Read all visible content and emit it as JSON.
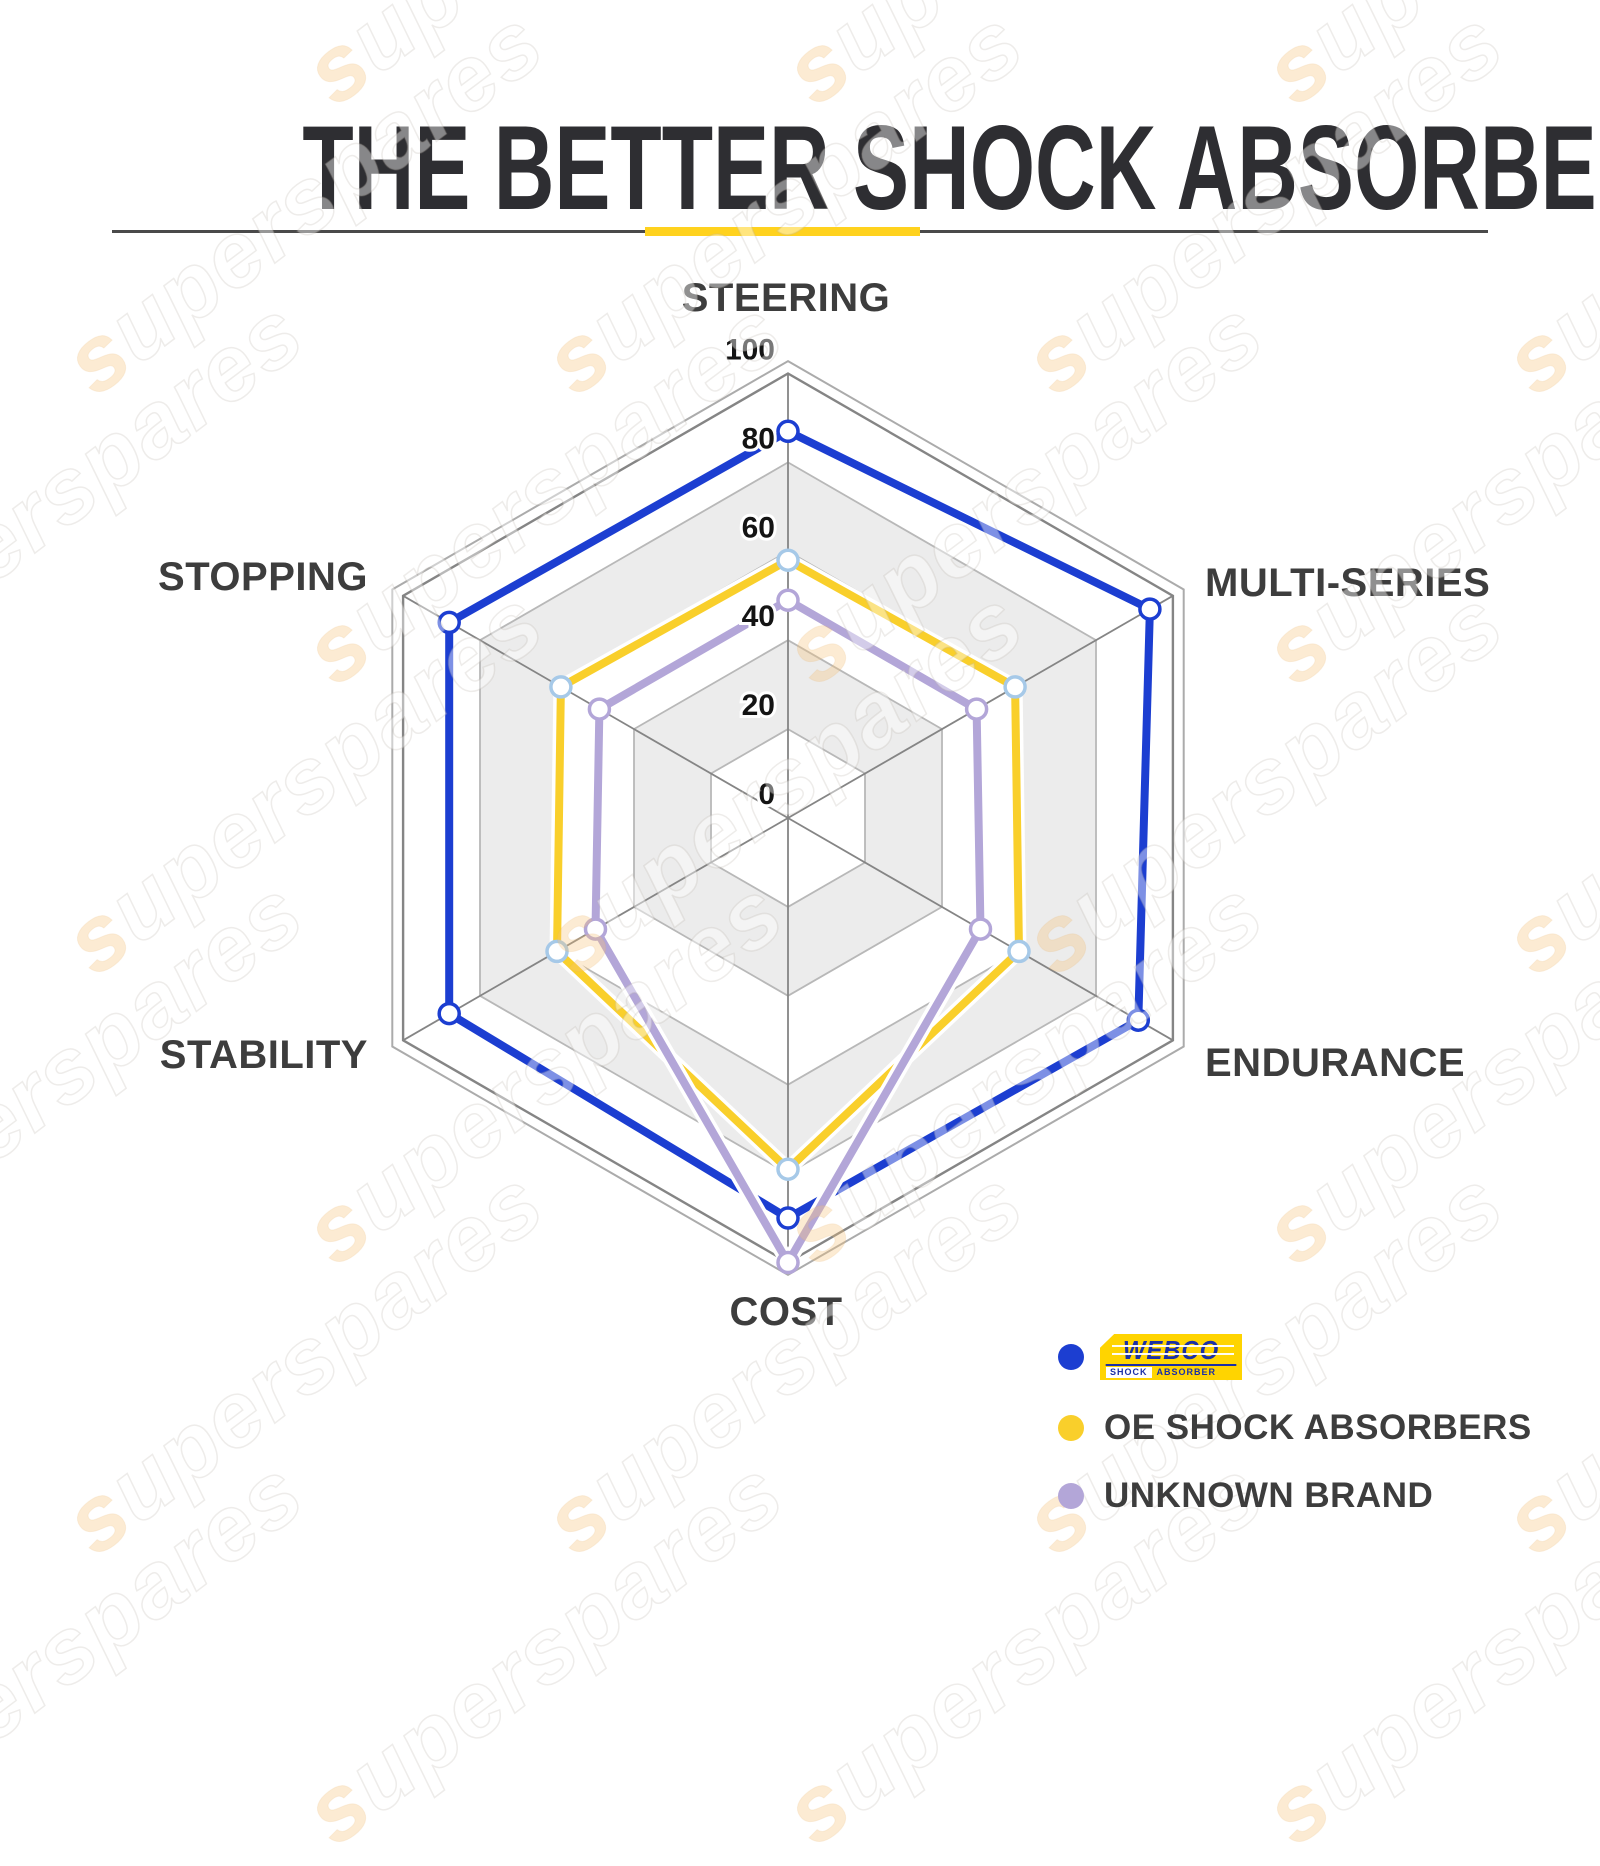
{
  "title": "THE BETTER SHOCK ABSORBERS",
  "watermark": {
    "text": "superspares"
  },
  "chart_data": {
    "type": "radar",
    "categories": [
      "STEERING",
      "MULTI-SERIES",
      "ENDURANCE",
      "COST",
      "STABILITY",
      "STOPPING"
    ],
    "tick_labels": [
      "0",
      "20",
      "40",
      "60",
      "80",
      "100"
    ],
    "ticks": [
      0,
      20,
      40,
      60,
      80,
      100
    ],
    "rmax": 100,
    "grid": "hexagon, alternating bands gray at 20-40 and 60-80",
    "band_color": "#ececec",
    "grid_line_color": "#b8b8b8",
    "axis_line_color": "#858585",
    "legend_position": "bottom-right",
    "series": [
      {
        "name": "WEBCO SHOCK ABSORBER",
        "color": "#1c3ed1",
        "marker_ring": "#1c3ed1",
        "values": [
          87,
          94,
          91,
          90,
          88,
          88
        ]
      },
      {
        "name": "OE SHOCK ABSORBERS",
        "color": "#f9cf2b",
        "marker_ring": "#a6c9e8",
        "values": [
          58,
          59,
          60,
          79,
          60,
          59
        ]
      },
      {
        "name": "UNKNOWN BRAND",
        "color": "#b3a6d8",
        "marker_ring": "#b3a6d8",
        "values": [
          49,
          49,
          50,
          100,
          50,
          49
        ]
      }
    ]
  },
  "legend": {
    "webco": {
      "word": "WEBCO",
      "sub_left": "SHOCK",
      "sub_right": "ABSORBER"
    },
    "items": [
      {
        "dot": "#1c3ed1",
        "label": "WEBCO SHOCK ABSORBER (logo)"
      },
      {
        "dot": "#f9cf2b",
        "label": "OE SHOCK ABSORBERS"
      },
      {
        "dot": "#b3a6d8",
        "label": "UNKNOWN BRAND"
      }
    ]
  },
  "accent_colors": {
    "divider_yellow": "#ffd21e",
    "divider_gray": "#4a4a4a",
    "title_color": "#2e2e32",
    "label_color": "#3d3d3d"
  }
}
